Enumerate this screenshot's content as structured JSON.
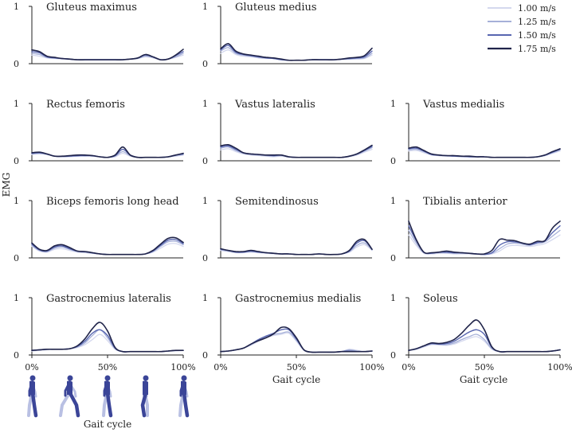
{
  "figure": {
    "ylabel": "EMG",
    "xlabel": "Gait cycle"
  },
  "legend": {
    "position": "top-right",
    "entries": [
      {
        "label": "1.00 m/s",
        "color": "#d4d8ee"
      },
      {
        "label": "1.25 m/s",
        "color": "#a6b0d8"
      },
      {
        "label": "1.50 m/s",
        "color": "#5866b0"
      },
      {
        "label": "1.75 m/s",
        "color": "#20244a"
      }
    ]
  },
  "chart_data": {
    "type": "line",
    "x_unit": "% gait cycle",
    "xlim": [
      0,
      100
    ],
    "ylim": [
      0,
      1
    ],
    "x_ticks": [
      "0%",
      "50%",
      "100%"
    ],
    "y_ticks": [
      "0",
      "1"
    ],
    "x": [
      0,
      5,
      10,
      15,
      20,
      25,
      30,
      35,
      40,
      45,
      50,
      55,
      60,
      65,
      70,
      75,
      80,
      85,
      90,
      95,
      100
    ],
    "series_names": [
      "1.00 m/s",
      "1.25 m/s",
      "1.50 m/s",
      "1.75 m/s"
    ],
    "panels": [
      {
        "title": "Gluteus maximus",
        "series": [
          [
            0.15,
            0.13,
            0.1,
            0.09,
            0.08,
            0.07,
            0.07,
            0.07,
            0.07,
            0.07,
            0.07,
            0.07,
            0.07,
            0.08,
            0.09,
            0.12,
            0.1,
            0.07,
            0.08,
            0.11,
            0.15
          ],
          [
            0.18,
            0.16,
            0.11,
            0.1,
            0.09,
            0.08,
            0.07,
            0.07,
            0.07,
            0.07,
            0.07,
            0.07,
            0.07,
            0.08,
            0.09,
            0.13,
            0.11,
            0.07,
            0.08,
            0.12,
            0.18
          ],
          [
            0.21,
            0.19,
            0.12,
            0.1,
            0.09,
            0.08,
            0.07,
            0.07,
            0.07,
            0.07,
            0.07,
            0.07,
            0.07,
            0.08,
            0.1,
            0.15,
            0.12,
            0.07,
            0.08,
            0.14,
            0.21
          ],
          [
            0.24,
            0.21,
            0.13,
            0.11,
            0.09,
            0.08,
            0.07,
            0.07,
            0.07,
            0.07,
            0.07,
            0.07,
            0.07,
            0.08,
            0.1,
            0.16,
            0.12,
            0.07,
            0.08,
            0.15,
            0.25
          ]
        ]
      },
      {
        "title": "Gluteus medius",
        "series": [
          [
            0.18,
            0.24,
            0.16,
            0.13,
            0.12,
            0.1,
            0.09,
            0.09,
            0.07,
            0.06,
            0.06,
            0.06,
            0.07,
            0.07,
            0.07,
            0.07,
            0.07,
            0.08,
            0.08,
            0.09,
            0.15
          ],
          [
            0.22,
            0.28,
            0.18,
            0.15,
            0.13,
            0.11,
            0.1,
            0.09,
            0.07,
            0.06,
            0.06,
            0.06,
            0.07,
            0.07,
            0.07,
            0.07,
            0.08,
            0.08,
            0.09,
            0.1,
            0.18
          ],
          [
            0.24,
            0.32,
            0.2,
            0.16,
            0.14,
            0.12,
            0.1,
            0.09,
            0.07,
            0.06,
            0.06,
            0.06,
            0.07,
            0.07,
            0.07,
            0.07,
            0.08,
            0.09,
            0.1,
            0.12,
            0.22
          ],
          [
            0.26,
            0.35,
            0.22,
            0.17,
            0.15,
            0.13,
            0.11,
            0.1,
            0.08,
            0.06,
            0.06,
            0.06,
            0.07,
            0.07,
            0.07,
            0.07,
            0.08,
            0.1,
            0.11,
            0.14,
            0.27
          ]
        ]
      },
      {
        "title": "",
        "series": []
      },
      {
        "title": "Rectus femoris",
        "series": [
          [
            0.11,
            0.12,
            0.11,
            0.08,
            0.07,
            0.07,
            0.08,
            0.08,
            0.08,
            0.07,
            0.06,
            0.07,
            0.13,
            0.08,
            0.06,
            0.06,
            0.06,
            0.06,
            0.07,
            0.08,
            0.1
          ],
          [
            0.12,
            0.13,
            0.11,
            0.08,
            0.07,
            0.08,
            0.08,
            0.09,
            0.08,
            0.07,
            0.06,
            0.08,
            0.16,
            0.09,
            0.06,
            0.06,
            0.06,
            0.06,
            0.07,
            0.09,
            0.11
          ],
          [
            0.13,
            0.14,
            0.12,
            0.08,
            0.08,
            0.08,
            0.09,
            0.09,
            0.09,
            0.07,
            0.06,
            0.09,
            0.2,
            0.1,
            0.06,
            0.06,
            0.06,
            0.06,
            0.07,
            0.1,
            0.12
          ],
          [
            0.14,
            0.15,
            0.12,
            0.08,
            0.08,
            0.09,
            0.1,
            0.1,
            0.09,
            0.07,
            0.06,
            0.1,
            0.24,
            0.1,
            0.06,
            0.06,
            0.06,
            0.06,
            0.07,
            0.1,
            0.13
          ]
        ]
      },
      {
        "title": "Vastus lateralis",
        "series": [
          [
            0.19,
            0.21,
            0.16,
            0.12,
            0.1,
            0.09,
            0.08,
            0.07,
            0.08,
            0.06,
            0.06,
            0.06,
            0.06,
            0.06,
            0.06,
            0.06,
            0.06,
            0.07,
            0.1,
            0.15,
            0.2
          ],
          [
            0.22,
            0.24,
            0.18,
            0.13,
            0.11,
            0.1,
            0.09,
            0.08,
            0.09,
            0.07,
            0.06,
            0.06,
            0.06,
            0.06,
            0.06,
            0.06,
            0.06,
            0.08,
            0.11,
            0.17,
            0.23
          ],
          [
            0.24,
            0.26,
            0.2,
            0.14,
            0.12,
            0.11,
            0.1,
            0.09,
            0.1,
            0.07,
            0.06,
            0.06,
            0.06,
            0.06,
            0.06,
            0.06,
            0.06,
            0.08,
            0.12,
            0.18,
            0.25
          ],
          [
            0.26,
            0.28,
            0.22,
            0.14,
            0.12,
            0.11,
            0.1,
            0.1,
            0.1,
            0.07,
            0.06,
            0.06,
            0.06,
            0.06,
            0.06,
            0.06,
            0.06,
            0.08,
            0.12,
            0.19,
            0.27
          ]
        ]
      },
      {
        "title": "Vastus medialis",
        "series": [
          [
            0.17,
            0.18,
            0.14,
            0.1,
            0.09,
            0.08,
            0.08,
            0.07,
            0.07,
            0.07,
            0.07,
            0.06,
            0.06,
            0.06,
            0.06,
            0.06,
            0.06,
            0.07,
            0.09,
            0.13,
            0.17
          ],
          [
            0.19,
            0.2,
            0.16,
            0.11,
            0.09,
            0.09,
            0.08,
            0.07,
            0.07,
            0.07,
            0.07,
            0.06,
            0.06,
            0.06,
            0.06,
            0.06,
            0.06,
            0.07,
            0.09,
            0.14,
            0.19
          ],
          [
            0.21,
            0.22,
            0.17,
            0.11,
            0.1,
            0.09,
            0.08,
            0.08,
            0.07,
            0.07,
            0.07,
            0.06,
            0.06,
            0.06,
            0.06,
            0.06,
            0.06,
            0.07,
            0.1,
            0.15,
            0.2
          ],
          [
            0.22,
            0.24,
            0.18,
            0.12,
            0.1,
            0.09,
            0.09,
            0.08,
            0.08,
            0.07,
            0.07,
            0.06,
            0.06,
            0.06,
            0.06,
            0.06,
            0.06,
            0.07,
            0.1,
            0.16,
            0.21
          ]
        ]
      },
      {
        "title": "Biceps femoris long head",
        "series": [
          [
            0.2,
            0.12,
            0.1,
            0.15,
            0.16,
            0.13,
            0.1,
            0.09,
            0.08,
            0.07,
            0.06,
            0.06,
            0.06,
            0.06,
            0.06,
            0.07,
            0.1,
            0.17,
            0.24,
            0.25,
            0.2
          ],
          [
            0.22,
            0.13,
            0.11,
            0.17,
            0.19,
            0.15,
            0.11,
            0.1,
            0.08,
            0.07,
            0.06,
            0.06,
            0.06,
            0.06,
            0.06,
            0.07,
            0.11,
            0.2,
            0.28,
            0.29,
            0.23
          ],
          [
            0.24,
            0.14,
            0.12,
            0.19,
            0.21,
            0.16,
            0.12,
            0.11,
            0.09,
            0.07,
            0.06,
            0.06,
            0.06,
            0.06,
            0.06,
            0.07,
            0.12,
            0.22,
            0.31,
            0.32,
            0.25
          ],
          [
            0.26,
            0.15,
            0.13,
            0.21,
            0.23,
            0.18,
            0.12,
            0.11,
            0.09,
            0.07,
            0.06,
            0.06,
            0.06,
            0.06,
            0.06,
            0.07,
            0.13,
            0.24,
            0.34,
            0.35,
            0.27
          ]
        ]
      },
      {
        "title": "Semitendinosus",
        "series": [
          [
            0.13,
            0.11,
            0.09,
            0.09,
            0.1,
            0.09,
            0.08,
            0.07,
            0.07,
            0.07,
            0.06,
            0.06,
            0.06,
            0.07,
            0.06,
            0.06,
            0.07,
            0.1,
            0.19,
            0.23,
            0.13
          ],
          [
            0.14,
            0.12,
            0.1,
            0.1,
            0.11,
            0.1,
            0.09,
            0.08,
            0.07,
            0.07,
            0.06,
            0.06,
            0.06,
            0.07,
            0.06,
            0.06,
            0.07,
            0.11,
            0.22,
            0.26,
            0.14
          ],
          [
            0.15,
            0.13,
            0.1,
            0.1,
            0.12,
            0.1,
            0.09,
            0.08,
            0.07,
            0.07,
            0.06,
            0.06,
            0.06,
            0.07,
            0.06,
            0.06,
            0.07,
            0.12,
            0.26,
            0.3,
            0.15
          ],
          [
            0.16,
            0.13,
            0.11,
            0.11,
            0.13,
            0.11,
            0.09,
            0.08,
            0.07,
            0.07,
            0.06,
            0.06,
            0.06,
            0.07,
            0.06,
            0.06,
            0.07,
            0.13,
            0.29,
            0.32,
            0.15
          ]
        ]
      },
      {
        "title": "Tibialis anterior",
        "series": [
          [
            0.4,
            0.22,
            0.08,
            0.07,
            0.08,
            0.08,
            0.07,
            0.07,
            0.07,
            0.06,
            0.06,
            0.07,
            0.12,
            0.2,
            0.22,
            0.21,
            0.2,
            0.22,
            0.25,
            0.32,
            0.4
          ],
          [
            0.48,
            0.26,
            0.09,
            0.08,
            0.09,
            0.09,
            0.08,
            0.08,
            0.08,
            0.07,
            0.06,
            0.08,
            0.16,
            0.24,
            0.26,
            0.24,
            0.22,
            0.25,
            0.28,
            0.38,
            0.48
          ],
          [
            0.56,
            0.3,
            0.1,
            0.08,
            0.1,
            0.1,
            0.09,
            0.09,
            0.08,
            0.07,
            0.06,
            0.09,
            0.22,
            0.28,
            0.28,
            0.26,
            0.23,
            0.27,
            0.3,
            0.44,
            0.56
          ],
          [
            0.64,
            0.32,
            0.1,
            0.09,
            0.1,
            0.12,
            0.1,
            0.09,
            0.08,
            0.07,
            0.07,
            0.13,
            0.32,
            0.31,
            0.3,
            0.26,
            0.24,
            0.29,
            0.3,
            0.52,
            0.64
          ]
        ]
      },
      {
        "title": "Gastrocnemius lateralis",
        "series": [
          [
            0.07,
            0.08,
            0.09,
            0.1,
            0.1,
            0.11,
            0.13,
            0.18,
            0.27,
            0.36,
            0.25,
            0.1,
            0.06,
            0.06,
            0.06,
            0.06,
            0.06,
            0.06,
            0.07,
            0.07,
            0.08
          ],
          [
            0.08,
            0.09,
            0.1,
            0.1,
            0.1,
            0.11,
            0.14,
            0.21,
            0.34,
            0.44,
            0.3,
            0.11,
            0.06,
            0.06,
            0.06,
            0.06,
            0.06,
            0.06,
            0.07,
            0.08,
            0.08
          ],
          [
            0.08,
            0.09,
            0.1,
            0.1,
            0.1,
            0.11,
            0.15,
            0.24,
            0.38,
            0.44,
            0.34,
            0.12,
            0.06,
            0.06,
            0.06,
            0.06,
            0.06,
            0.06,
            0.07,
            0.08,
            0.08
          ],
          [
            0.08,
            0.09,
            0.1,
            0.1,
            0.1,
            0.11,
            0.16,
            0.28,
            0.46,
            0.57,
            0.42,
            0.13,
            0.06,
            0.06,
            0.06,
            0.06,
            0.06,
            0.06,
            0.07,
            0.08,
            0.08
          ]
        ]
      },
      {
        "title": "Gastrocnemius medialis",
        "series": [
          [
            0.06,
            0.07,
            0.09,
            0.12,
            0.17,
            0.24,
            0.3,
            0.34,
            0.36,
            0.38,
            0.24,
            0.08,
            0.05,
            0.05,
            0.05,
            0.05,
            0.06,
            0.1,
            0.08,
            0.06,
            0.07
          ],
          [
            0.06,
            0.07,
            0.09,
            0.12,
            0.18,
            0.26,
            0.32,
            0.36,
            0.38,
            0.4,
            0.26,
            0.09,
            0.05,
            0.05,
            0.05,
            0.05,
            0.06,
            0.09,
            0.07,
            0.06,
            0.07
          ],
          [
            0.06,
            0.07,
            0.09,
            0.12,
            0.19,
            0.27,
            0.33,
            0.38,
            0.44,
            0.44,
            0.28,
            0.09,
            0.05,
            0.05,
            0.05,
            0.05,
            0.06,
            0.07,
            0.06,
            0.06,
            0.07
          ],
          [
            0.06,
            0.07,
            0.09,
            0.12,
            0.19,
            0.25,
            0.3,
            0.37,
            0.48,
            0.46,
            0.3,
            0.09,
            0.05,
            0.05,
            0.05,
            0.05,
            0.06,
            0.06,
            0.06,
            0.06,
            0.07
          ]
        ]
      },
      {
        "title": "Soleus",
        "series": [
          [
            0.08,
            0.1,
            0.14,
            0.18,
            0.18,
            0.17,
            0.19,
            0.24,
            0.29,
            0.32,
            0.24,
            0.1,
            0.06,
            0.06,
            0.06,
            0.06,
            0.06,
            0.06,
            0.06,
            0.07,
            0.09
          ],
          [
            0.08,
            0.1,
            0.15,
            0.19,
            0.18,
            0.18,
            0.21,
            0.27,
            0.32,
            0.36,
            0.27,
            0.11,
            0.06,
            0.06,
            0.06,
            0.06,
            0.06,
            0.06,
            0.06,
            0.07,
            0.09
          ],
          [
            0.08,
            0.11,
            0.16,
            0.2,
            0.19,
            0.2,
            0.24,
            0.32,
            0.4,
            0.44,
            0.36,
            0.13,
            0.06,
            0.06,
            0.06,
            0.06,
            0.06,
            0.06,
            0.06,
            0.07,
            0.09
          ],
          [
            0.08,
            0.11,
            0.16,
            0.21,
            0.2,
            0.22,
            0.27,
            0.38,
            0.52,
            0.61,
            0.44,
            0.14,
            0.06,
            0.06,
            0.06,
            0.06,
            0.06,
            0.06,
            0.06,
            0.07,
            0.09
          ]
        ]
      }
    ]
  }
}
